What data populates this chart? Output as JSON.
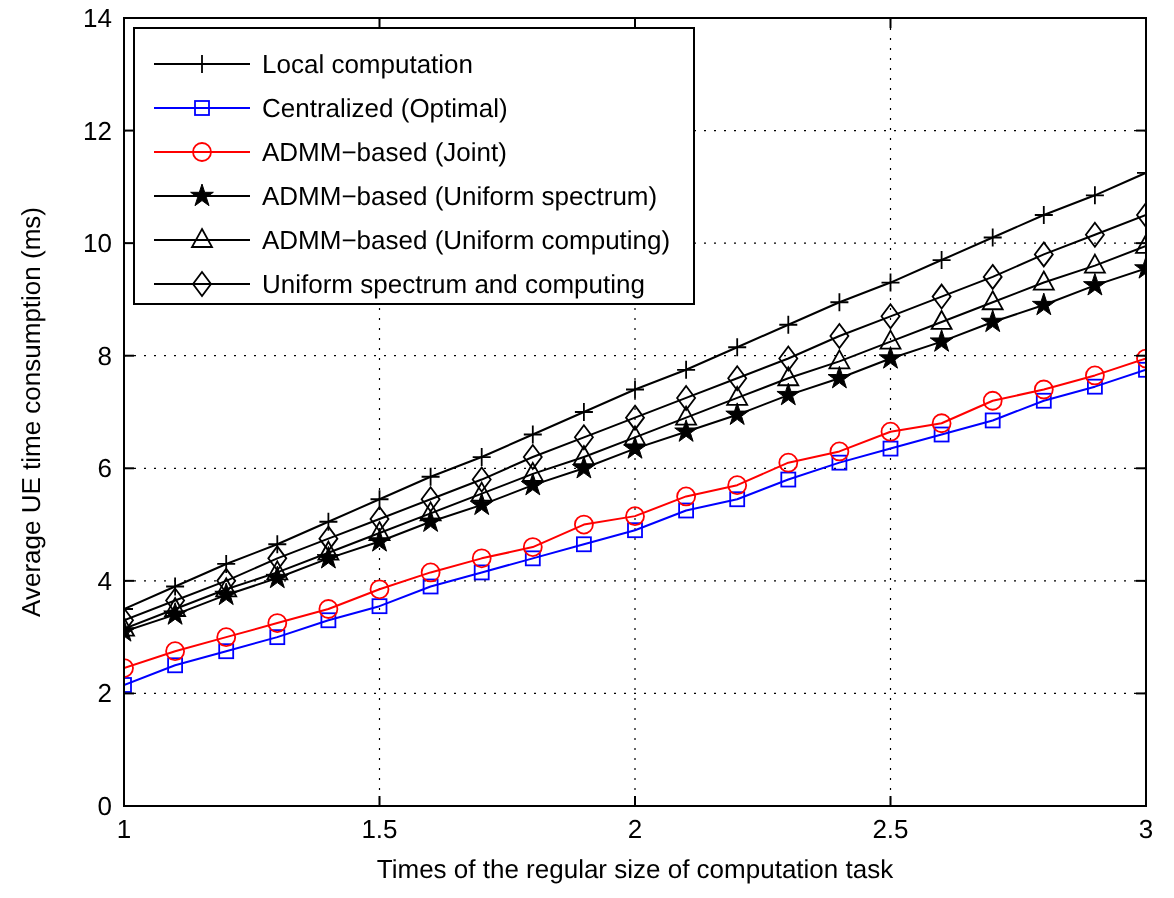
{
  "chart_data": {
    "type": "line",
    "xlabel": "Times of the regular size of computation task",
    "ylabel": "Average UE time consumption (ms)",
    "x": [
      1,
      1.1,
      1.2,
      1.3,
      1.4,
      1.5,
      1.6,
      1.7,
      1.8,
      1.9,
      2,
      2.1,
      2.2,
      2.3,
      2.4,
      2.5,
      2.6,
      2.7,
      2.8,
      2.9,
      3
    ],
    "xlim": [
      1,
      3
    ],
    "xticks": [
      1,
      1.5,
      2,
      2.5,
      3
    ],
    "ylim": [
      0,
      14
    ],
    "yticks": [
      0,
      2,
      4,
      6,
      8,
      10,
      12,
      14
    ],
    "grid": true,
    "legend": "top left",
    "line_style": "solid",
    "series": [
      {
        "name": "Local computation",
        "color": "#000000",
        "marker": "cross",
        "values": [
          3.5,
          3.9,
          4.3,
          4.65,
          5.05,
          5.45,
          5.85,
          6.2,
          6.6,
          7.0,
          7.4,
          7.75,
          8.15,
          8.55,
          8.95,
          9.3,
          9.7,
          10.1,
          10.5,
          10.85,
          11.25
        ]
      },
      {
        "name": "Centralized (Optimal)",
        "color": "#0000ff",
        "marker": "square",
        "values": [
          2.15,
          2.5,
          2.75,
          3.0,
          3.3,
          3.55,
          3.9,
          4.15,
          4.4,
          4.65,
          4.9,
          5.25,
          5.45,
          5.8,
          6.1,
          6.35,
          6.6,
          6.85,
          7.2,
          7.45,
          7.75
        ]
      },
      {
        "name": "ADMM−based (Joint)",
        "color": "#ff0000",
        "marker": "circle",
        "values": [
          2.45,
          2.75,
          3.0,
          3.25,
          3.5,
          3.85,
          4.15,
          4.4,
          4.6,
          5.0,
          5.15,
          5.5,
          5.7,
          6.1,
          6.3,
          6.65,
          6.8,
          7.2,
          7.4,
          7.65,
          7.95
        ]
      },
      {
        "name": "ADMM−based (Uniform spectrum)",
        "color": "#000000",
        "marker": "star",
        "values": [
          3.1,
          3.4,
          3.75,
          4.05,
          4.4,
          4.7,
          5.05,
          5.35,
          5.7,
          6.0,
          6.35,
          6.65,
          6.95,
          7.3,
          7.6,
          7.95,
          8.25,
          8.6,
          8.9,
          9.25,
          9.55
        ]
      },
      {
        "name": "ADMM−based (Uniform computing)",
        "color": "#000000",
        "marker": "triangle",
        "values": [
          3.15,
          3.5,
          3.85,
          4.15,
          4.5,
          4.85,
          5.2,
          5.55,
          5.9,
          6.2,
          6.55,
          6.9,
          7.25,
          7.6,
          7.9,
          8.25,
          8.6,
          8.95,
          9.3,
          9.6,
          9.95
        ]
      },
      {
        "name": "Uniform spectrum and computing",
        "color": "#000000",
        "marker": "diamond",
        "values": [
          3.3,
          3.65,
          4.0,
          4.4,
          4.75,
          5.1,
          5.45,
          5.8,
          6.2,
          6.55,
          6.9,
          7.25,
          7.6,
          7.95,
          8.35,
          8.7,
          9.05,
          9.4,
          9.8,
          10.15,
          10.5
        ]
      }
    ]
  }
}
